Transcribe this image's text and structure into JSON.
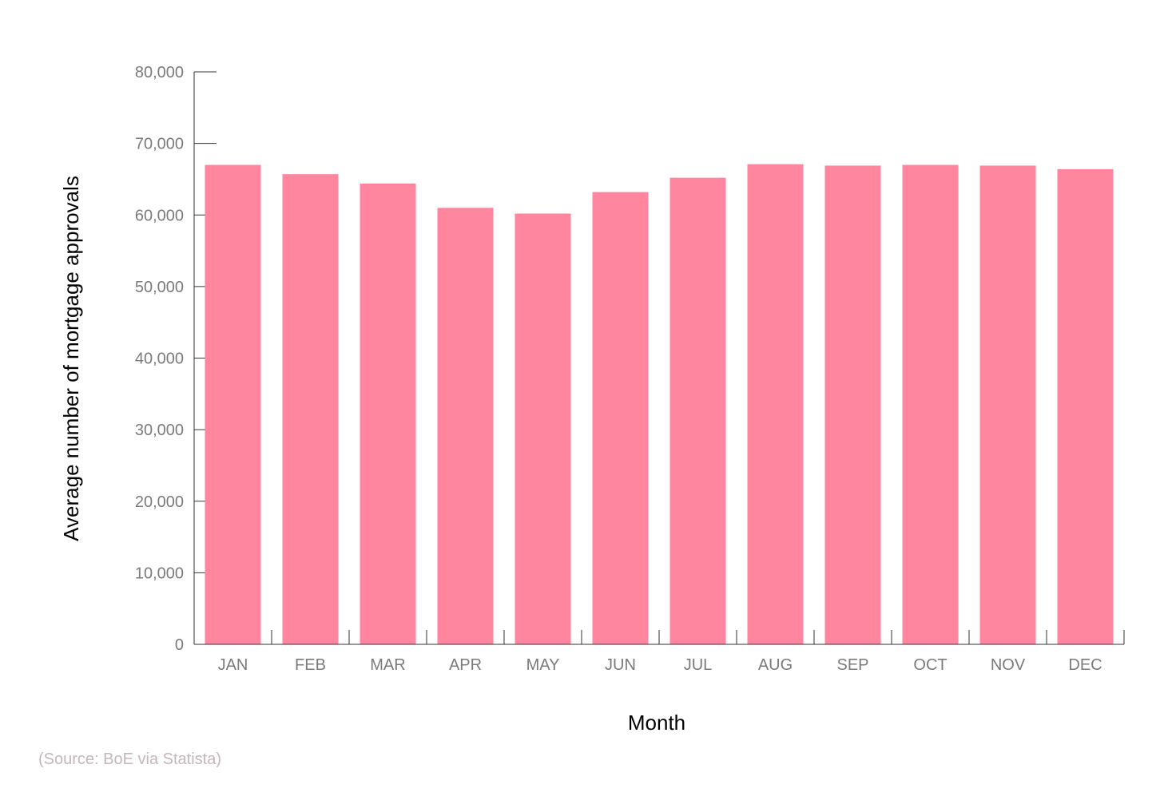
{
  "chart_data": {
    "type": "bar",
    "categories": [
      "JAN",
      "FEB",
      "MAR",
      "APR",
      "MAY",
      "JUN",
      "JUL",
      "AUG",
      "SEP",
      "OCT",
      "NOV",
      "DEC"
    ],
    "values": [
      67000,
      65700,
      64400,
      61000,
      60200,
      63200,
      65200,
      67100,
      66900,
      67000,
      66900,
      66400
    ],
    "xlabel": "Month",
    "ylabel": "Average number of mortgage approvals",
    "ylim": [
      0,
      80000
    ],
    "yticks": [
      0,
      10000,
      20000,
      30000,
      40000,
      50000,
      60000,
      70000,
      80000
    ],
    "ytick_labels": [
      "0",
      "10,000",
      "20,000",
      "30,000",
      "40,000",
      "50,000",
      "60,000",
      "70,000",
      "80,000"
    ],
    "grid": false,
    "bar_color": "#ff869e",
    "axis_color": "#333333"
  },
  "source_note": "(Source: BoE via Statista)"
}
